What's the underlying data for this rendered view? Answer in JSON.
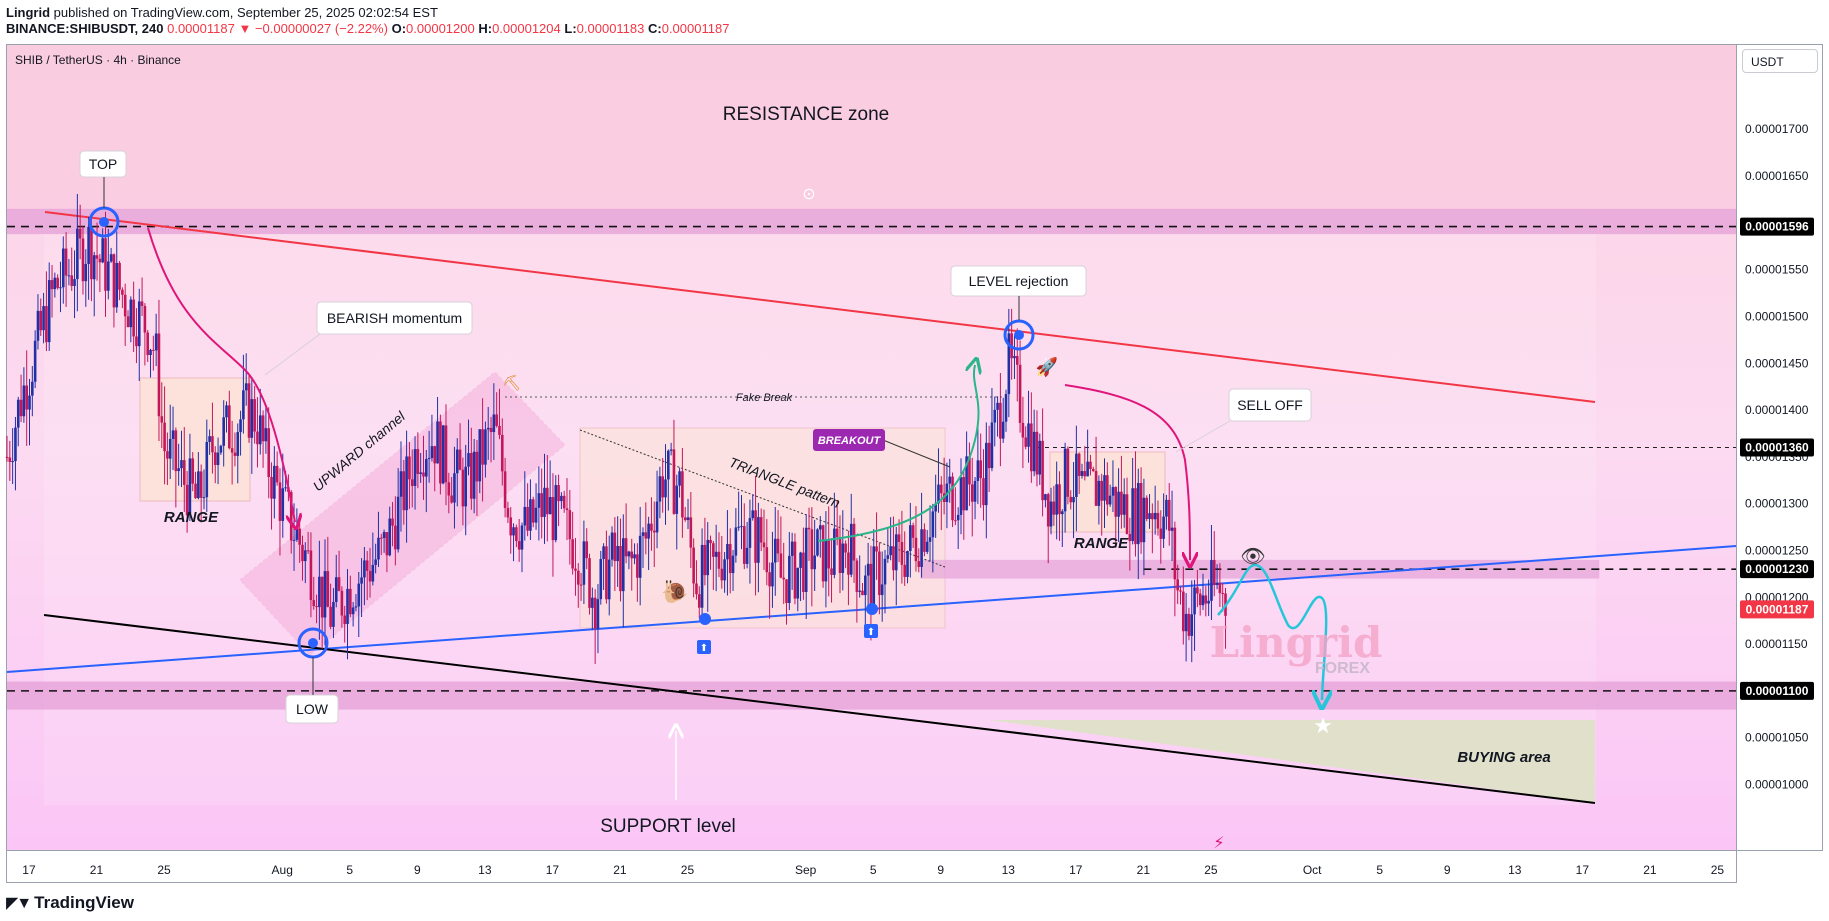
{
  "header": {
    "author": "Lingrid",
    "published": "published on TradingView.com, September 25, 2025 02:02:54 EST",
    "symbol_line": "BINANCE:SHIBUSDT, 240",
    "price": "0.00001187",
    "change": "−0.00000027 (−2.22%)",
    "o_label": "O:",
    "o": "0.00001200",
    "h_label": "H:",
    "h": "0.00001204",
    "l_label": "L:",
    "l": "0.00001183",
    "c_label": "C:",
    "c": "0.00001187"
  },
  "chart_title": "SHIB / TetherUS · 4h · Binance",
  "currency_button": "USDT",
  "footer_logo": "TradingView",
  "watermark": {
    "main": "Lingrid",
    "sub": "FOREX"
  },
  "colors": {
    "zone": "#e6a3d8",
    "bg_top": "#fbd2e3",
    "bg_mid": "#fcdcf2",
    "bg_bottom": "#fbc9f5",
    "candle_up": "#2230a6",
    "candle_down": "#c2185b",
    "resistance_line": "#f23645",
    "trend_line": "#2962ff",
    "support_line": "#000000",
    "forecast": "#26c6da",
    "last_price": "#f23645"
  },
  "annotations": {
    "resistance_zone": "RESISTANCE zone",
    "top": "TOP",
    "low": "LOW",
    "bearish_momentum": "BEARISH momentum",
    "range_left": "RANGE",
    "upward_channel": "UPWARD channel",
    "fake_break": "Fake Break",
    "triangle_pattern": "TRIANGLE pattern",
    "breakout": "BREAKOUT",
    "level_rejection": "LEVEL rejection",
    "sell_off": "SELL OFF",
    "range_right": "RANGE",
    "buying_area": "BUYING area",
    "support_level": "SUPPORT level"
  },
  "chart_data": {
    "type": "candlestick",
    "title": "SHIB / TetherUS · 4h · Binance",
    "y_ticks": [
      "0.00001700",
      "0.00001650",
      "0.00001600",
      "0.00001550",
      "0.00001500",
      "0.00001450",
      "0.00001400",
      "0.00001350",
      "0.00001300",
      "0.00001250",
      "0.00001200",
      "0.00001150",
      "0.00001100",
      "0.00001050",
      "0.00001000"
    ],
    "y_tick_values": [
      1.7e-05,
      1.65e-05,
      1.6e-05,
      1.55e-05,
      1.5e-05,
      1.45e-05,
      1.4e-05,
      1.35e-05,
      1.3e-05,
      1.25e-05,
      1.2e-05,
      1.15e-05,
      1.1e-05,
      1.05e-05,
      1e-05
    ],
    "x_ticks": [
      "17",
      "21",
      "25",
      "Aug",
      "5",
      "9",
      "13",
      "17",
      "21",
      "25",
      "Sep",
      "5",
      "9",
      "13",
      "17",
      "21",
      "25",
      "Oct",
      "5",
      "9",
      "13",
      "17",
      "21",
      "25"
    ],
    "x_tick_days": [
      -15,
      -11,
      -7,
      0,
      4,
      8,
      12,
      16,
      20,
      24,
      31,
      35,
      39,
      43,
      47,
      51,
      55,
      61,
      65,
      69,
      73,
      77,
      81,
      85
    ],
    "ylim": [
      9.3e-06,
      1.79e-05
    ],
    "xlim_days": [
      -16.3,
      86.1
    ],
    "price_labels": [
      {
        "label": "0.00001596",
        "value": 1.596e-05
      },
      {
        "label": "0.00001360",
        "value": 1.36e-05
      },
      {
        "label": "0.00001230",
        "value": 1.23e-05
      },
      {
        "label": "0.00001187",
        "value": 1.187e-05,
        "last": true
      },
      {
        "label": "0.00001100",
        "value": 1.1e-05
      }
    ],
    "close_path": [
      [
        -16.3,
        1.35e-05
      ],
      [
        -15.5,
        1.41e-05
      ],
      [
        -14.5,
        1.47e-05
      ],
      [
        -13.5,
        1.53e-05
      ],
      [
        -12.5,
        1.55e-05
      ],
      [
        -11.5,
        1.58e-05
      ],
      [
        -10.8,
        1.56e-05
      ],
      [
        -10.0,
        1.54e-05
      ],
      [
        -9.0,
        1.51e-05
      ],
      [
        -8.0,
        1.49e-05
      ],
      [
        -7.5,
        1.46e-05
      ],
      [
        -7.0,
        1.36e-05
      ],
      [
        -6.0,
        1.33e-05
      ],
      [
        -5.0,
        1.3e-05
      ],
      [
        -4.0,
        1.37e-05
      ],
      [
        -3.0,
        1.38e-05
      ],
      [
        -2.0,
        1.4e-05
      ],
      [
        -1.5,
        1.39e-05
      ],
      [
        -1.0,
        1.35e-05
      ],
      [
        0.0,
        1.3e-05
      ],
      [
        1.0,
        1.26e-05
      ],
      [
        2.0,
        1.22e-05
      ],
      [
        2.8,
        1.18e-05
      ],
      [
        4.0,
        1.21e-05
      ],
      [
        5.0,
        1.23e-05
      ],
      [
        6.0,
        1.25e-05
      ],
      [
        7.0,
        1.3e-05
      ],
      [
        8.0,
        1.36e-05
      ],
      [
        9.0,
        1.37e-05
      ],
      [
        10.0,
        1.33e-05
      ],
      [
        11.0,
        1.32e-05
      ],
      [
        12.0,
        1.36e-05
      ],
      [
        12.6,
        1.38e-05
      ],
      [
        13.5,
        1.29e-05
      ],
      [
        14.5,
        1.27e-05
      ],
      [
        15.5,
        1.3e-05
      ],
      [
        16.5,
        1.28e-05
      ],
      [
        17.5,
        1.25e-05
      ],
      [
        18.5,
        1.2e-05
      ],
      [
        19.5,
        1.24e-05
      ],
      [
        20.5,
        1.23e-05
      ],
      [
        21.5,
        1.26e-05
      ],
      [
        22.5,
        1.33e-05
      ],
      [
        23.5,
        1.32e-05
      ],
      [
        24.5,
        1.22e-05
      ],
      [
        25.5,
        1.23e-05
      ],
      [
        26.5,
        1.26e-05
      ],
      [
        27.5,
        1.27e-05
      ],
      [
        28.5,
        1.26e-05
      ],
      [
        29.5,
        1.22e-05
      ],
      [
        30.5,
        1.23e-05
      ],
      [
        31.5,
        1.25e-05
      ],
      [
        32.5,
        1.24e-05
      ],
      [
        33.5,
        1.26e-05
      ],
      [
        34.5,
        1.21e-05
      ],
      [
        35.5,
        1.23e-05
      ],
      [
        36.5,
        1.24e-05
      ],
      [
        37.5,
        1.26e-05
      ],
      [
        38.5,
        1.29e-05
      ],
      [
        39.5,
        1.31e-05
      ],
      [
        40.5,
        1.32e-05
      ],
      [
        41.5,
        1.33e-05
      ],
      [
        42.5,
        1.4e-05
      ],
      [
        43.0,
        1.45e-05
      ],
      [
        43.5,
        1.42e-05
      ],
      [
        44.5,
        1.36e-05
      ],
      [
        45.5,
        1.3e-05
      ],
      [
        46.5,
        1.33e-05
      ],
      [
        47.5,
        1.31e-05
      ],
      [
        48.5,
        1.32e-05
      ],
      [
        49.5,
        1.3e-05
      ],
      [
        50.5,
        1.29e-05
      ],
      [
        51.5,
        1.3e-05
      ],
      [
        52.5,
        1.28e-05
      ],
      [
        53.0,
        1.21e-05
      ],
      [
        53.5,
        1.18e-05
      ],
      [
        54.5,
        1.2e-05
      ],
      [
        55.5,
        1.21e-05
      ],
      [
        56.0,
        1.19e-05
      ]
    ],
    "levels": {
      "resistance_zone_top": 1.615e-05,
      "resistance_zone_bottom": 1.588e-05,
      "resistance_dash": 1.596e-05,
      "sell_dash": 1.36e-05,
      "mid_zone_top": 1.24e-05,
      "mid_zone_bottom": 1.22e-05,
      "mid_dash": 1.23e-05,
      "support_zone_top": 1.11e-05,
      "support_zone_bottom": 1.08e-05,
      "support_dash": 1.1e-05
    }
  }
}
